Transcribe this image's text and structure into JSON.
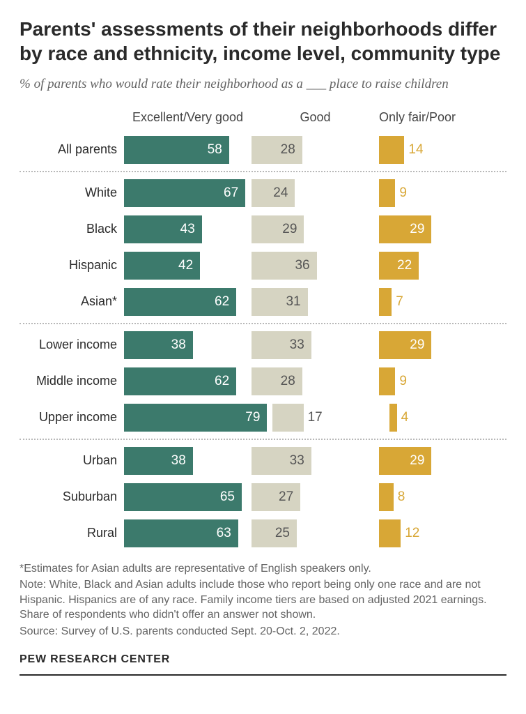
{
  "title": "Parents' assessments of their neighborhoods differ by race and ethnicity, income level, community type",
  "subtitle": "% of parents who would rate their neighborhood as a ___ place to raise children",
  "chart": {
    "type": "bar",
    "max_value": 100,
    "bar_scale": 2.6,
    "columns": [
      {
        "label": "Excellent/Very good",
        "color": "#3c7a6c",
        "text_inside": "#ffffff",
        "text_outside": "#3c7a6c"
      },
      {
        "label": "Good",
        "color": "#d6d4c2",
        "text_inside": "#555555",
        "text_outside": "#555555"
      },
      {
        "label": "Only fair/Poor",
        "color": "#d8a736",
        "text_inside": "#ffffff",
        "text_outside": "#d8a736"
      }
    ],
    "groups": [
      {
        "rows": [
          {
            "label": "All parents",
            "values": [
              58,
              28,
              14
            ]
          }
        ]
      },
      {
        "rows": [
          {
            "label": "White",
            "values": [
              67,
              24,
              9
            ]
          },
          {
            "label": "Black",
            "values": [
              43,
              29,
              29
            ]
          },
          {
            "label": "Hispanic",
            "values": [
              42,
              36,
              22
            ]
          },
          {
            "label": "Asian*",
            "values": [
              62,
              31,
              7
            ]
          }
        ]
      },
      {
        "rows": [
          {
            "label": "Lower income",
            "values": [
              38,
              33,
              29
            ]
          },
          {
            "label": "Middle income",
            "values": [
              62,
              28,
              9
            ]
          },
          {
            "label": "Upper income",
            "values": [
              79,
              17,
              4
            ]
          }
        ]
      },
      {
        "rows": [
          {
            "label": "Urban",
            "values": [
              38,
              33,
              29
            ]
          },
          {
            "label": "Suburban",
            "values": [
              65,
              27,
              8
            ]
          },
          {
            "label": "Rural",
            "values": [
              63,
              25,
              12
            ]
          }
        ]
      }
    ],
    "label_threshold": 18
  },
  "footnotes": [
    "*Estimates for Asian adults are representative of English speakers only.",
    "Note: White, Black and Asian adults include those who report being only one race and are not Hispanic. Hispanics are of any race. Family income tiers are based on adjusted 2021 earnings. Share of respondents who didn't offer an answer not shown.",
    "Source: Survey of U.S. parents conducted Sept. 20-Oct. 2, 2022."
  ],
  "attribution": "PEW RESEARCH CENTER"
}
